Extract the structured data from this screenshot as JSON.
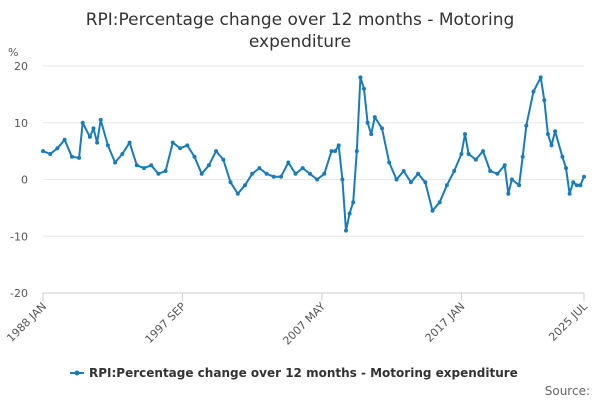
{
  "chart_data": {
    "type": "line",
    "title_lines": [
      "RPI:Percentage change over 12 months - Motoring",
      "expenditure"
    ],
    "ylabel": "%",
    "ylim": [
      -20,
      20
    ],
    "yticks": [
      20,
      10,
      0,
      -10,
      -20
    ],
    "x_start": "1988 JAN",
    "x_end": "2025 JUL",
    "x_tick_labels": [
      "1988 JAN",
      "1997 SEP",
      "2007 MAY",
      "2017 JAN",
      "2025 JUL"
    ],
    "grid": true,
    "legend": "bottom",
    "series": [
      {
        "name": "RPI:Percentage change over 12 months - Motoring expenditure",
        "color": "#1a7bb9",
        "points": [
          [
            "1988 JAN",
            5.0
          ],
          [
            "1988 JUL",
            4.5
          ],
          [
            "1989 JAN",
            5.5
          ],
          [
            "1989 JUL",
            7.0
          ],
          [
            "1990 JAN",
            4.0
          ],
          [
            "1990 JUL",
            3.8
          ],
          [
            "1990 OCT",
            10.0
          ],
          [
            "1991 APR",
            7.5
          ],
          [
            "1991 JUL",
            9.0
          ],
          [
            "1991 OCT",
            6.5
          ],
          [
            "1992 JAN",
            10.5
          ],
          [
            "1992 JUL",
            6.0
          ],
          [
            "1993 JAN",
            3.0
          ],
          [
            "1993 JUL",
            4.5
          ],
          [
            "1994 JAN",
            6.5
          ],
          [
            "1994 JUL",
            2.5
          ],
          [
            "1995 JAN",
            2.0
          ],
          [
            "1995 JUL",
            2.5
          ],
          [
            "1996 JAN",
            1.0
          ],
          [
            "1996 JUL",
            1.5
          ],
          [
            "1997 JAN",
            6.5
          ],
          [
            "1997 JUL",
            5.5
          ],
          [
            "1998 JAN",
            6.0
          ],
          [
            "1998 JUL",
            4.0
          ],
          [
            "1999 JAN",
            1.0
          ],
          [
            "1999 JUL",
            2.5
          ],
          [
            "2000 JAN",
            5.0
          ],
          [
            "2000 JUL",
            3.5
          ],
          [
            "2001 JAN",
            -0.5
          ],
          [
            "2001 JUL",
            -2.5
          ],
          [
            "2002 JAN",
            -1.0
          ],
          [
            "2002 JUL",
            1.0
          ],
          [
            "2003 JAN",
            2.0
          ],
          [
            "2003 JUL",
            1.0
          ],
          [
            "2004 JAN",
            0.5
          ],
          [
            "2004 JUL",
            0.5
          ],
          [
            "2005 JAN",
            3.0
          ],
          [
            "2005 JUL",
            1.0
          ],
          [
            "2006 JAN",
            2.0
          ],
          [
            "2006 JUL",
            1.0
          ],
          [
            "2007 JAN",
            0.0
          ],
          [
            "2007 JUL",
            1.0
          ],
          [
            "2008 JAN",
            5.0
          ],
          [
            "2008 APR",
            5.0
          ],
          [
            "2008 JUL",
            6.0
          ],
          [
            "2008 OCT",
            0.0
          ],
          [
            "2009 JAN",
            -9.0
          ],
          [
            "2009 APR",
            -6.0
          ],
          [
            "2009 JUL",
            -4.0
          ],
          [
            "2009 OCT",
            5.0
          ],
          [
            "2010 JAN",
            18.0
          ],
          [
            "2010 APR",
            16.0
          ],
          [
            "2010 JUL",
            10.0
          ],
          [
            "2010 OCT",
            8.0
          ],
          [
            "2011 JAN",
            11.0
          ],
          [
            "2011 JUL",
            9.0
          ],
          [
            "2012 JAN",
            3.0
          ],
          [
            "2012 JUL",
            0.0
          ],
          [
            "2013 JAN",
            1.5
          ],
          [
            "2013 JUL",
            -0.5
          ],
          [
            "2014 JAN",
            1.0
          ],
          [
            "2014 JUL",
            -0.5
          ],
          [
            "2015 JAN",
            -5.5
          ],
          [
            "2015 JUL",
            -4.0
          ],
          [
            "2016 JAN",
            -1.0
          ],
          [
            "2016 JUL",
            1.5
          ],
          [
            "2017 JAN",
            4.5
          ],
          [
            "2017 APR",
            8.0
          ],
          [
            "2017 JUL",
            4.5
          ],
          [
            "2018 JAN",
            3.5
          ],
          [
            "2018 JUL",
            5.0
          ],
          [
            "2019 JAN",
            1.5
          ],
          [
            "2019 JUL",
            1.0
          ],
          [
            "2020 JAN",
            2.5
          ],
          [
            "2020 APR",
            -2.5
          ],
          [
            "2020 JUL",
            0.0
          ],
          [
            "2021 JAN",
            -1.0
          ],
          [
            "2021 APR",
            4.0
          ],
          [
            "2021 JUL",
            9.5
          ],
          [
            "2022 JAN",
            15.5
          ],
          [
            "2022 JUL",
            18.0
          ],
          [
            "2022 OCT",
            14.0
          ],
          [
            "2023 JAN",
            8.0
          ],
          [
            "2023 APR",
            6.0
          ],
          [
            "2023 JUL",
            8.5
          ],
          [
            "2024 JAN",
            4.0
          ],
          [
            "2024 APR",
            2.0
          ],
          [
            "2024 JUL",
            -2.5
          ],
          [
            "2024 OCT",
            -0.5
          ],
          [
            "2025 JAN",
            -1.0
          ],
          [
            "2025 APR",
            -1.0
          ],
          [
            "2025 JUL",
            0.5
          ]
        ]
      }
    ],
    "source": "Source:"
  }
}
